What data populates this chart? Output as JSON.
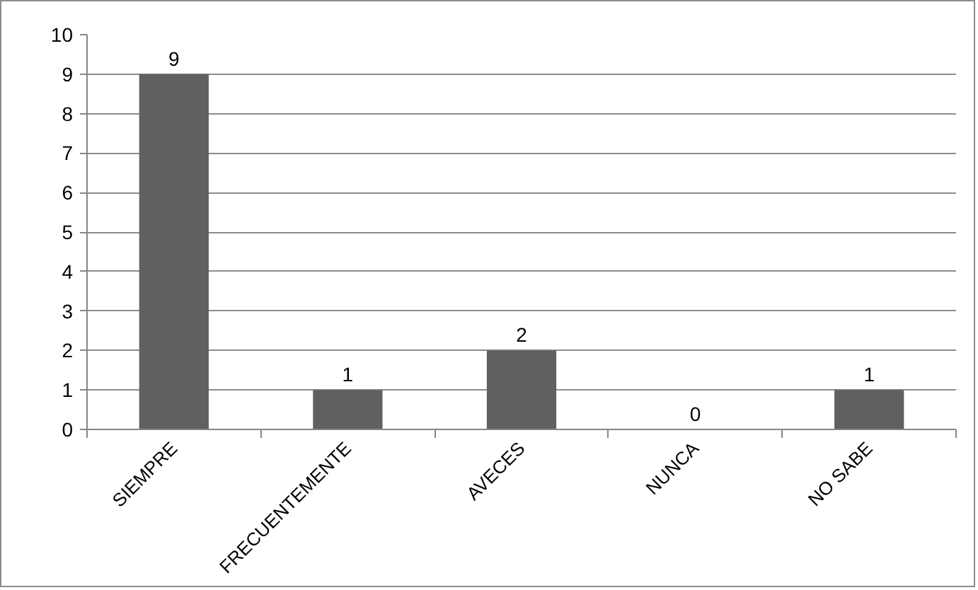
{
  "chart_data": {
    "type": "bar",
    "categories": [
      "SIEMPRE",
      "FRECUENTEMENTE",
      "AVECES",
      "NUNCA",
      "NO SABE"
    ],
    "values": [
      9,
      1,
      2,
      0,
      1
    ],
    "color": "#606060",
    "ylim": [
      0,
      10
    ],
    "yticks": [
      0,
      1,
      2,
      3,
      4,
      5,
      6,
      7,
      8,
      9,
      10
    ],
    "grid": "y",
    "data_labels": true
  }
}
